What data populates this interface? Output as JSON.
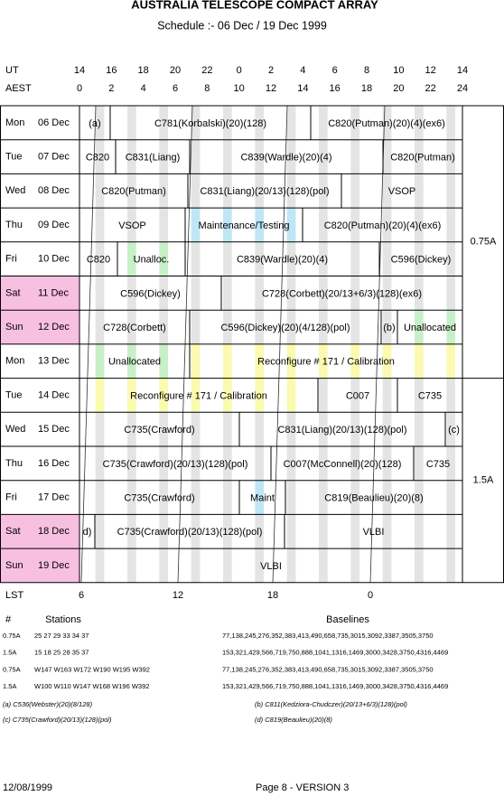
{
  "header": {
    "title": "AUSTRALIA TELESCOPE COMPACT ARRAY",
    "subtitle": "Schedule :- 06 Dec / 19 Dec 1999"
  },
  "time_axis": {
    "ut_label": "UT",
    "ut": [
      14,
      16,
      18,
      20,
      22,
      0,
      2,
      4,
      6,
      8,
      10,
      12,
      14
    ],
    "aest_label": "AEST",
    "aest": [
      0,
      2,
      4,
      6,
      8,
      10,
      12,
      14,
      16,
      18,
      20,
      22,
      24
    ],
    "lst_label": "LST",
    "lst": [
      6,
      12,
      18,
      0
    ]
  },
  "schedule": [
    {
      "day": "Mon",
      "date": "06 Dec",
      "blocks": [
        "(a)",
        "C781(Korbalski)(20)(128)",
        "C820(Putman)(20)(4)(ex6)"
      ]
    },
    {
      "day": "Tue",
      "date": "07 Dec",
      "blocks": [
        "C820",
        "C831(Liang)",
        "C839(Wardle)(20)(4)",
        "C820(Putman)"
      ]
    },
    {
      "day": "Wed",
      "date": "08 Dec",
      "blocks": [
        "C820(Putman)",
        "C831(Liang)(20/13)(128)(pol)",
        "VSOP"
      ]
    },
    {
      "day": "Thu",
      "date": "09 Dec",
      "blocks": [
        "VSOP",
        "Maintenance/Testing",
        "C820(Putman)(20)(4)(ex6)"
      ]
    },
    {
      "day": "Fri",
      "date": "10 Dec",
      "blocks": [
        "C820",
        "Unalloc.",
        "C839(Wardle)(20)(4)",
        "C596(Dickey)"
      ]
    },
    {
      "day": "Sat",
      "date": "11 Dec",
      "blocks": [
        "C596(Dickey)",
        "C728(Corbett)(20/13+6/3)(128)(ex6)"
      ]
    },
    {
      "day": "Sun",
      "date": "12 Dec",
      "blocks": [
        "C728(Corbett)",
        "C596(Dickey)(20)(4/128)(pol)",
        "(b)",
        "Unallocated"
      ]
    },
    {
      "day": "Mon",
      "date": "13 Dec",
      "blocks": [
        "Unallocated",
        "Reconfigure # 171 / Calibration"
      ]
    },
    {
      "day": "Tue",
      "date": "14 Dec",
      "blocks": [
        "Reconfigure # 171 / Calibration",
        "C007",
        "C735"
      ]
    },
    {
      "day": "Wed",
      "date": "15 Dec",
      "blocks": [
        "C735(Crawford)",
        "C831(Liang)(20/13)(128)(pol)",
        "(c)"
      ]
    },
    {
      "day": "Thu",
      "date": "16 Dec",
      "blocks": [
        "C735(Crawford)(20/13)(128)(pol)",
        "C007(McConnell)(20)(128)",
        "C735"
      ]
    },
    {
      "day": "Fri",
      "date": "17 Dec",
      "blocks": [
        "C735(Crawford)",
        "Maint",
        "C819(Beaulieu)(20)(8)"
      ]
    },
    {
      "day": "Sat",
      "date": "18 Dec",
      "blocks": [
        "d)",
        "C735(Crawford)(20/13)(128)(pol)",
        "VLBI"
      ]
    },
    {
      "day": "Sun",
      "date": "19 Dec",
      "blocks": [
        "VLBI"
      ]
    }
  ],
  "configs": [
    "0.75A",
    "1.5A"
  ],
  "stations": {
    "headers": [
      "#",
      "Stations",
      "Baselines"
    ],
    "rows": [
      [
        "0.75A",
        "25 27 29 33 34 37",
        "77,138,245,276,352,383,413,490,658,735,3015,3092,3387,3505,3750"
      ],
      [
        "1.5A",
        "15 18 25 28 35 37",
        "153,321,429,566,719,750,888,1041,1316,1469,3000,3428,3750,4316,4469"
      ],
      [
        "0.75A",
        "W147 W163 W172 W190 W195 W392",
        "77,138,245,276,352,383,413,490,658,735,3015,3092,3387,3505,3750"
      ],
      [
        "1.5A",
        "W100 W110 W147 W168 W196 W392",
        "153,321,429,566,719,750,888,1041,1316,1469,3000,3428,3750,4316,4469"
      ]
    ]
  },
  "notes": [
    "(a) C536(Webster)(20)(8/128)",
    "(b) C811(Kedziora-Chudczer)(20/13+6/3)(128)(pol)",
    "(c) C735(Crawford)(20/13)(128)(pol)",
    "(d) C819(Beaulieu)(20)(8)"
  ],
  "footer": {
    "date": "12/08/1999",
    "page": "Page 8 - VERSION 3"
  }
}
